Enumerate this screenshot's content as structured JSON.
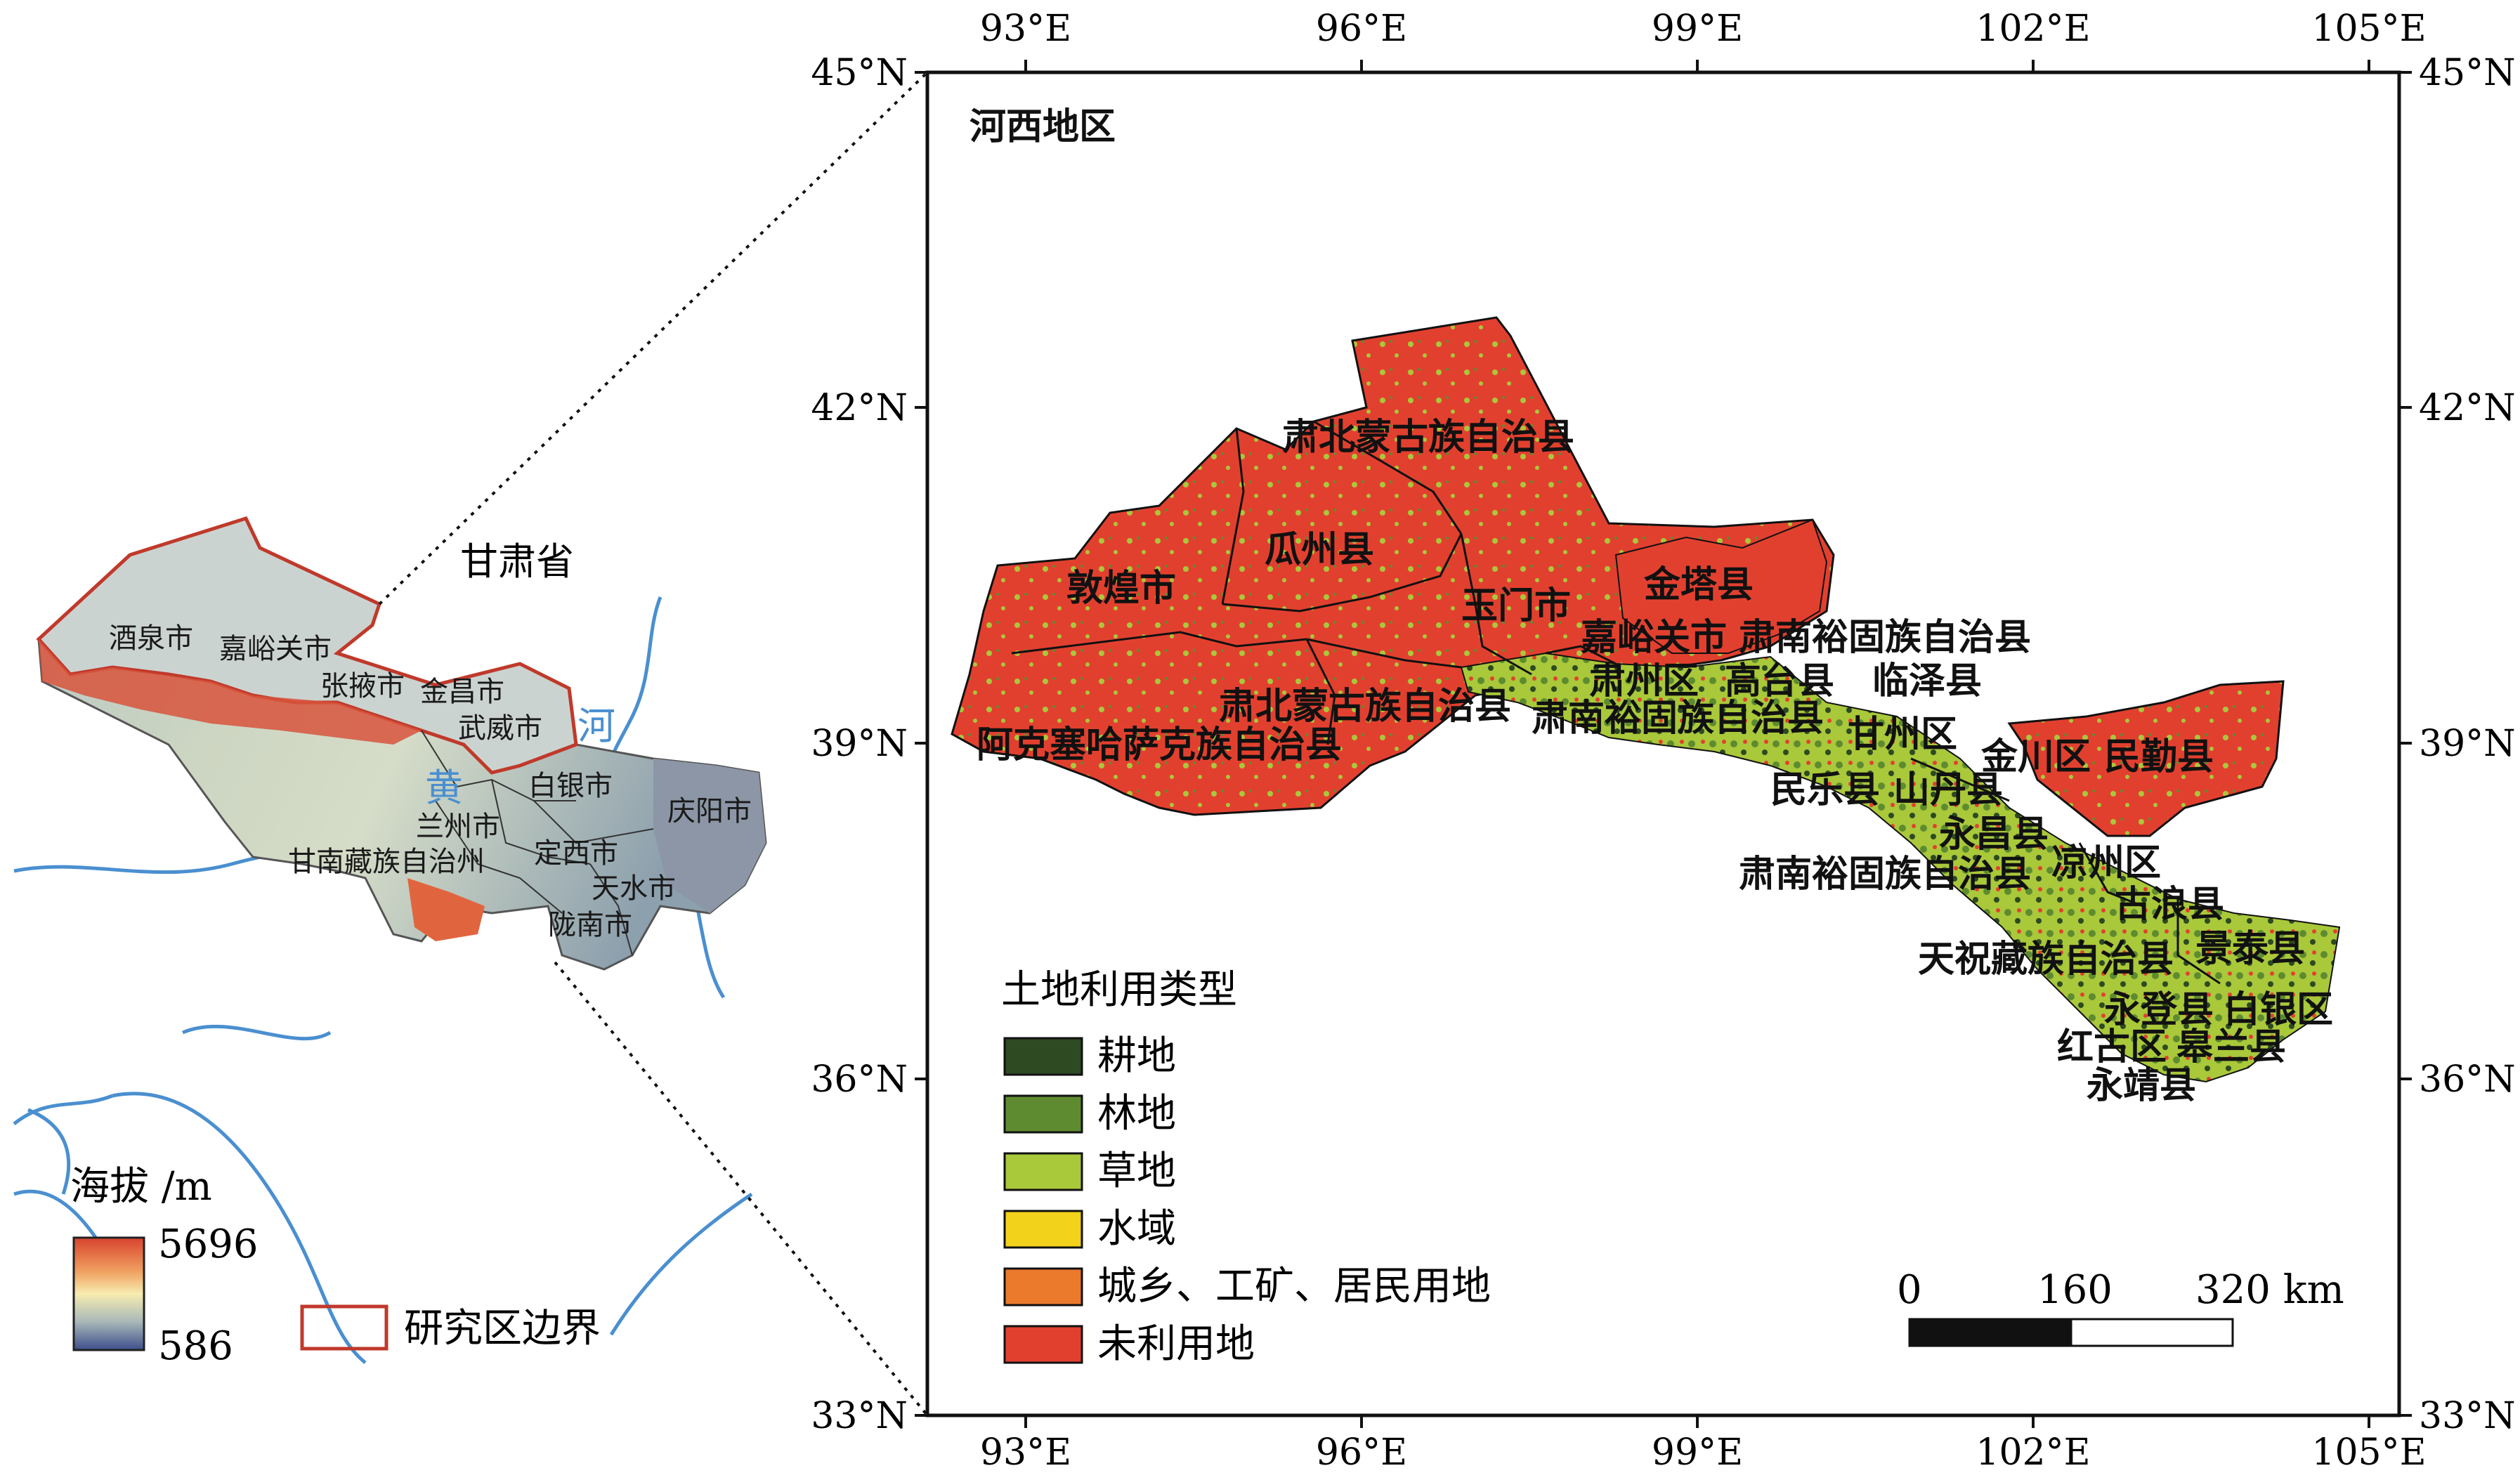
{
  "province_map": {
    "title": "甘肃省",
    "cities": [
      "酒泉市",
      "嘉峪关市",
      "张掖市",
      "金昌市",
      "武威市",
      "白银市",
      "兰州市",
      "定西市",
      "天水市",
      "陇南市",
      "庆阳市",
      "甘南藏族自治州"
    ],
    "river_chars": [
      "黄",
      "河"
    ],
    "elevation_legend": {
      "title": "海拔 /m",
      "max": "5696",
      "min": "586"
    },
    "boundary_legend": "研究区边界"
  },
  "main_map": {
    "title": "河西地区",
    "lon_ticks": [
      "93°E",
      "96°E",
      "99°E",
      "102°E",
      "105°E"
    ],
    "lat_ticks": [
      "45°N",
      "42°N",
      "39°N",
      "36°N",
      "33°N"
    ],
    "counties": [
      "肃北蒙古族自治县",
      "瓜州县",
      "敦煌市",
      "玉门市",
      "金塔县",
      "嘉峪关市",
      "肃南裕固族自治县",
      "肃州区",
      "高台县",
      "临泽县",
      "肃北蒙古族自治县",
      "肃南裕固族自治县",
      "阿克塞哈萨克族自治县",
      "甘州区",
      "金川区",
      "民勤县",
      "民乐县",
      "山丹县",
      "永昌县",
      "肃南裕固族自治县",
      "凉州区",
      "古浪县",
      "天祝藏族自治县",
      "景泰县",
      "永登县",
      "白银区",
      "红古区",
      "皋兰县",
      "永靖县"
    ],
    "landuse_legend": {
      "title": "土地利用类型",
      "items": [
        {
          "label": "耕地",
          "color": "#2d4a22"
        },
        {
          "label": "林地",
          "color": "#5e8b2f"
        },
        {
          "label": "草地",
          "color": "#a9c83a"
        },
        {
          "label": "水域",
          "color": "#f2d21b"
        },
        {
          "label": "城乡、工矿、居民用地",
          "color": "#ec7a2c"
        },
        {
          "label": "未利用地",
          "color": "#e2402f"
        }
      ]
    },
    "scale_bar": {
      "labels": [
        "0",
        "160",
        "320 km"
      ]
    }
  }
}
